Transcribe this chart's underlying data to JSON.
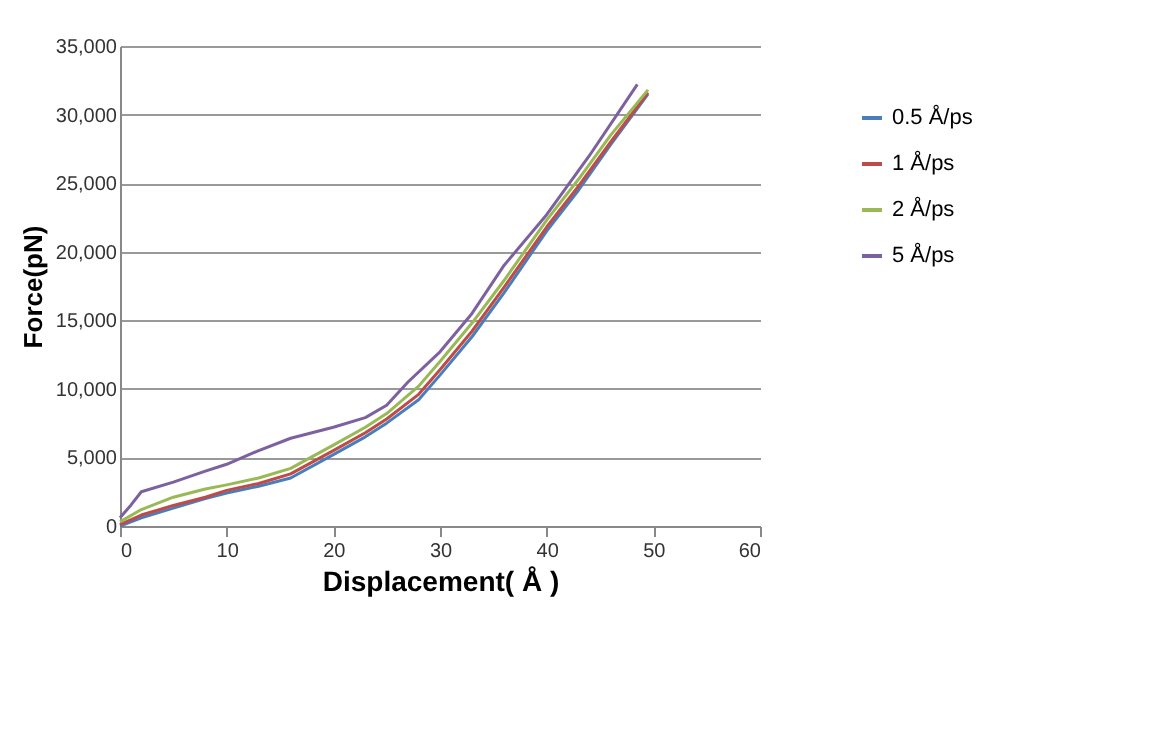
{
  "chart_data": {
    "type": "line",
    "xlabel": "Displacement( Å )",
    "ylabel": "Force(pN)",
    "xlim": [
      0,
      60
    ],
    "xticks": [
      0,
      10,
      20,
      30,
      40,
      50,
      60
    ],
    "ylim": [
      0,
      35000
    ],
    "yticks": [
      {
        "value": 0,
        "label": "0"
      },
      {
        "value": 5000,
        "label": "5,000"
      },
      {
        "value": 10000,
        "label": "10,000"
      },
      {
        "value": 15000,
        "label": "15,000"
      },
      {
        "value": 20000,
        "label": "20,000"
      },
      {
        "value": 25000,
        "label": "25,000"
      },
      {
        "value": 30000,
        "label": "30,000"
      },
      {
        "value": 35000,
        "label": "35,000"
      }
    ],
    "grid": "y",
    "legend": "right",
    "marker": "none",
    "line_style": "solid",
    "series": [
      {
        "name": "0.5 Å/ps",
        "color": "#4a7ebb",
        "x": [
          0,
          2,
          5,
          8,
          10,
          13,
          16,
          20,
          23,
          25,
          28,
          30,
          33,
          36,
          40,
          43,
          46,
          49.5
        ],
        "values": [
          0,
          600,
          1300,
          2000,
          2400,
          2900,
          3500,
          5200,
          6500,
          7500,
          9200,
          11000,
          13800,
          17000,
          21500,
          24500,
          27800,
          31500
        ]
      },
      {
        "name": "1 Å/ps",
        "color": "#be4b48",
        "x": [
          0,
          2,
          5,
          8,
          10,
          13,
          16,
          20,
          23,
          25,
          28,
          30,
          33,
          36,
          40,
          43,
          46,
          49.5
        ],
        "values": [
          100,
          800,
          1500,
          2100,
          2600,
          3100,
          3800,
          5500,
          6800,
          7800,
          9600,
          11400,
          14200,
          17400,
          21800,
          24800,
          28000,
          31600
        ]
      },
      {
        "name": "2 Å/ps",
        "color": "#98b954",
        "x": [
          0,
          2,
          5,
          8,
          10,
          13,
          16,
          20,
          23,
          25,
          28,
          30,
          33,
          36,
          40,
          43,
          46,
          49.5
        ],
        "values": [
          300,
          1200,
          2100,
          2700,
          3000,
          3500,
          4200,
          5900,
          7200,
          8200,
          10200,
          12000,
          14800,
          17900,
          22300,
          25300,
          28500,
          31800
        ]
      },
      {
        "name": "5 Å/ps",
        "color": "#7d60a0",
        "x": [
          0,
          1,
          2,
          5,
          8,
          10,
          13,
          16,
          20,
          23,
          25,
          27,
          30,
          33,
          36,
          40,
          44,
          48.5
        ],
        "values": [
          600,
          1500,
          2500,
          3200,
          4000,
          4500,
          5500,
          6400,
          7200,
          7900,
          8800,
          10500,
          12700,
          15500,
          19000,
          22700,
          27000,
          32200
        ]
      }
    ]
  }
}
